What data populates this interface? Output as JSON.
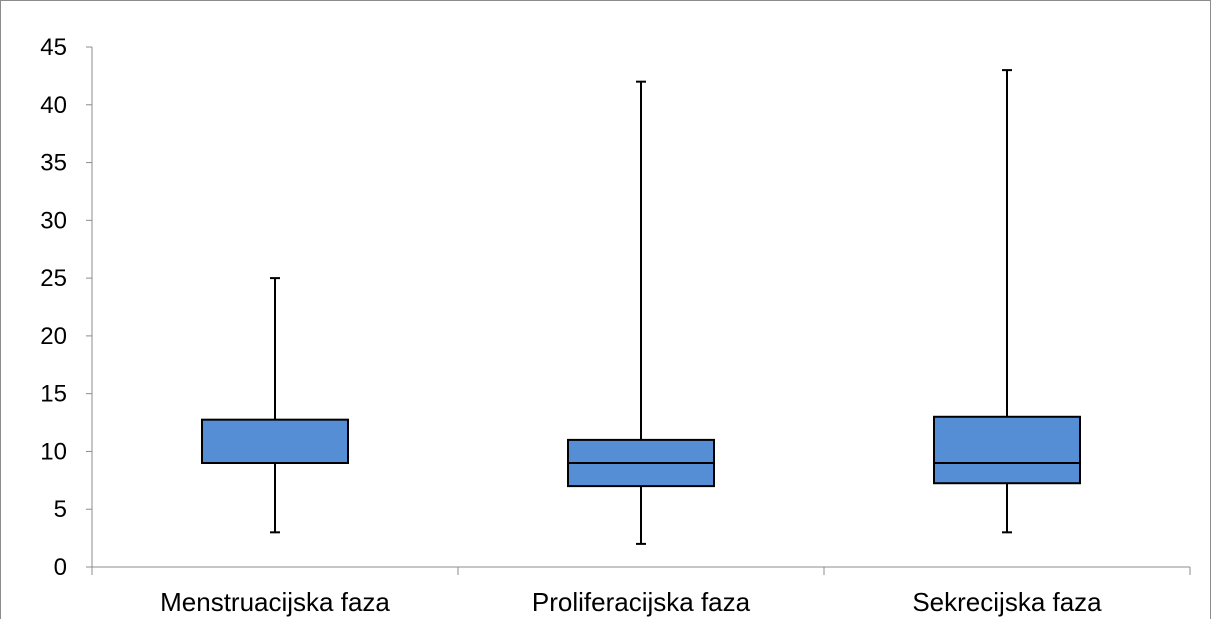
{
  "chart_data": {
    "type": "box",
    "title": "",
    "xlabel": "",
    "ylabel": "",
    "ylim": [
      0,
      45
    ],
    "yticks": [
      0,
      5,
      10,
      15,
      20,
      25,
      30,
      35,
      40,
      45
    ],
    "categories": [
      "Menstruacijska faza",
      "Proliferacijska faza",
      "Sekrecijska faza"
    ],
    "boxes": [
      {
        "category": "Menstruacijska faza",
        "min": 3,
        "q1": 9,
        "median": 9,
        "q3": 12.75,
        "max": 25
      },
      {
        "category": "Proliferacijska faza",
        "min": 2,
        "q1": 7,
        "median": 9,
        "q3": 11,
        "max": 42
      },
      {
        "category": "Sekrecijska faza",
        "min": 3,
        "q1": 7.25,
        "median": 9,
        "q3": 13,
        "max": 43
      }
    ],
    "box_color": "#558ed5",
    "line_color": "#000000",
    "axis_color": "#8c8c8c",
    "grid": false,
    "legend": "none"
  }
}
